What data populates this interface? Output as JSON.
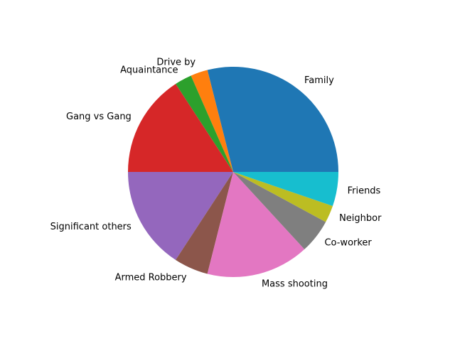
{
  "chart_data": {
    "type": "pie",
    "title": "",
    "start_angle_deg": 0,
    "direction": "counterclockwise",
    "slices": [
      {
        "label": "Family",
        "value": 11,
        "color": "#1f77b4"
      },
      {
        "label": "Drive by",
        "value": 1,
        "color": "#ff7f0e"
      },
      {
        "label": "Aquaintance",
        "value": 1,
        "color": "#2ca02c"
      },
      {
        "label": "Gang vs Gang",
        "value": 6,
        "color": "#d62728"
      },
      {
        "label": "Significant others",
        "value": 6,
        "color": "#9467bd"
      },
      {
        "label": "Armed Robbery",
        "value": 2,
        "color": "#8c564b"
      },
      {
        "label": "Mass shooting",
        "value": 6,
        "color": "#e377c2"
      },
      {
        "label": "Co-worker",
        "value": 2,
        "color": "#7f7f7f"
      },
      {
        "label": "Neighbor",
        "value": 1,
        "color": "#bcbd22"
      },
      {
        "label": "Friends",
        "value": 2,
        "color": "#17becf"
      }
    ]
  }
}
